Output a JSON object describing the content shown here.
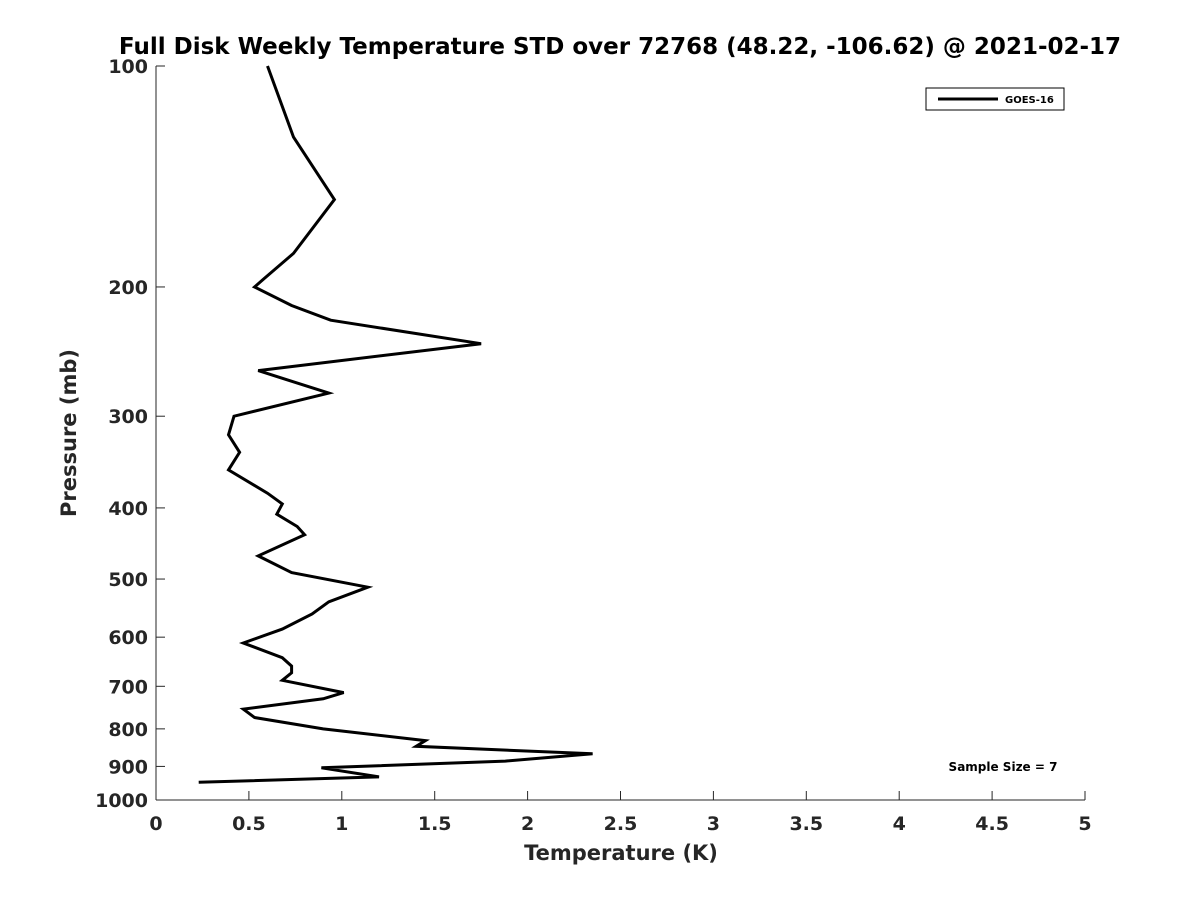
{
  "chart_data": {
    "type": "line",
    "title": "Full Disk Weekly Temperature STD over 72768 (48.22, -106.62) @ 2021-02-17",
    "xlabel": "Temperature (K)",
    "ylabel": "Pressure (mb)",
    "xlim": [
      0,
      5
    ],
    "ylim": [
      100,
      1000
    ],
    "yscale": "log",
    "y_reversed": true,
    "grid": false,
    "legend_position": "top-right",
    "x_ticks": [
      0,
      0.5,
      1,
      1.5,
      2,
      2.5,
      3,
      3.5,
      4,
      4.5,
      5
    ],
    "x_tick_labels": [
      "0",
      "0.5",
      "1",
      "1.5",
      "2",
      "2.5",
      "3",
      "3.5",
      "4",
      "4.5",
      "5"
    ],
    "y_ticks": [
      100,
      200,
      300,
      400,
      500,
      600,
      700,
      800,
      900,
      1000
    ],
    "y_tick_labels": [
      "100",
      "200",
      "300",
      "400",
      "500",
      "600",
      "700",
      "800",
      "900",
      "1000"
    ],
    "series": [
      {
        "name": "GOES-16",
        "color": "#000000",
        "points": [
          [
            0.6,
            100
          ],
          [
            0.74,
            125
          ],
          [
            0.96,
            152
          ],
          [
            0.74,
            180
          ],
          [
            0.58,
            195
          ],
          [
            0.53,
            200
          ],
          [
            0.73,
            212
          ],
          [
            0.94,
            222
          ],
          [
            1.75,
            239
          ],
          [
            0.55,
            260
          ],
          [
            0.93,
            279
          ],
          [
            0.42,
            300
          ],
          [
            0.39,
            318
          ],
          [
            0.45,
            336
          ],
          [
            0.39,
            355
          ],
          [
            0.6,
            382
          ],
          [
            0.68,
            395
          ],
          [
            0.65,
            408
          ],
          [
            0.76,
            424
          ],
          [
            0.8,
            435
          ],
          [
            0.55,
            465
          ],
          [
            0.73,
            490
          ],
          [
            1.14,
            513
          ],
          [
            0.93,
            537
          ],
          [
            0.84,
            558
          ],
          [
            0.68,
            585
          ],
          [
            0.47,
            611
          ],
          [
            0.68,
            640
          ],
          [
            0.73,
            657
          ],
          [
            0.73,
            671
          ],
          [
            0.68,
            687
          ],
          [
            1.01,
            714
          ],
          [
            0.9,
            728
          ],
          [
            0.47,
            752
          ],
          [
            0.53,
            772
          ],
          [
            0.9,
            800
          ],
          [
            1.45,
            830
          ],
          [
            1.4,
            845
          ],
          [
            2.35,
            865
          ],
          [
            1.88,
            885
          ],
          [
            0.89,
            904
          ],
          [
            1.2,
            930
          ],
          [
            0.23,
            946
          ]
        ]
      }
    ],
    "annotation": "Sample Size = 7"
  }
}
